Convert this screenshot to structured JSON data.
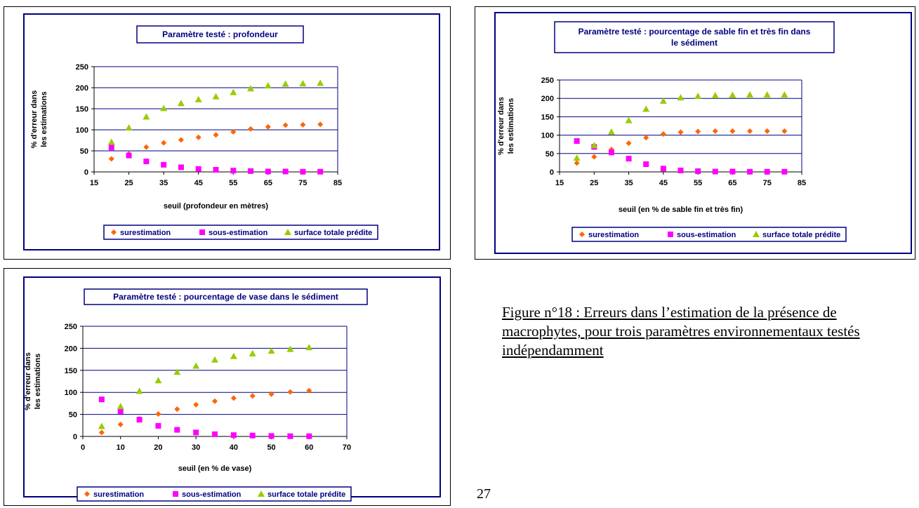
{
  "caption": "Figure n°18 : Erreurs dans l’estimation de la présence de macrophytes, pour trois paramètres environnementaux testés indépendamment",
  "page_number": "27",
  "colors": {
    "surestimation": "#FF6600",
    "sous_estimation": "#FF00FF",
    "surface": "#99CC00",
    "frame": "#000080"
  },
  "chart_data": [
    {
      "type": "scatter",
      "title": "Paramètre testé : profondeur",
      "xlabel": "seuil (profondeur en mètres)",
      "ylabel": "% d'erreur dans les estimations",
      "xlim": [
        15,
        85
      ],
      "ylim": [
        0,
        250
      ],
      "xticks": [
        "15",
        "25",
        "35",
        "45",
        "55",
        "65",
        "75",
        "85"
      ],
      "yticks": [
        "0",
        "50",
        "100",
        "150",
        "200",
        "250"
      ],
      "grid": "horizontal",
      "legend": "bottom",
      "x": [
        20,
        25,
        30,
        35,
        40,
        45,
        50,
        55,
        60,
        65,
        70,
        75,
        80
      ],
      "series": [
        {
          "name": "surestimation",
          "marker": "diamond",
          "values": [
            31,
            43,
            59,
            69,
            76,
            82,
            88,
            95,
            102,
            107,
            111,
            112,
            113
          ]
        },
        {
          "name": "sous-estimation",
          "marker": "square",
          "values": [
            58,
            39,
            25,
            17,
            11,
            7,
            5,
            3,
            2,
            1,
            1,
            0.5,
            0.5
          ]
        },
        {
          "name": "surface totale prédite",
          "marker": "triangle",
          "values": [
            71,
            105,
            131,
            151,
            163,
            172,
            179,
            189,
            198,
            205,
            209,
            210,
            211
          ]
        }
      ]
    },
    {
      "type": "scatter",
      "title": "Paramètre testé : pourcentage de sable fin et très fin dans le sédiment",
      "xlabel": "seuil (en % de sable fin et très fin)",
      "ylabel": "% d'erreur dans les estimations",
      "xlim": [
        15,
        85
      ],
      "ylim": [
        0,
        250
      ],
      "xticks": [
        "15",
        "25",
        "35",
        "45",
        "55",
        "65",
        "75",
        "85"
      ],
      "yticks": [
        "0",
        "50",
        "100",
        "150",
        "200",
        "250"
      ],
      "grid": "horizontal",
      "legend": "bottom",
      "x": [
        20,
        25,
        30,
        35,
        40,
        45,
        50,
        55,
        60,
        65,
        70,
        75,
        80
      ],
      "series": [
        {
          "name": "surestimation",
          "marker": "diamond",
          "values": [
            24,
            41,
            61,
            78,
            93,
            103,
            108,
            110,
            111,
            111,
            111,
            111,
            111
          ]
        },
        {
          "name": "sous-estimation",
          "marker": "square",
          "values": [
            84,
            68,
            53,
            36,
            21,
            9,
            4,
            2,
            1,
            1,
            0.5,
            0.5,
            0.5
          ]
        },
        {
          "name": "surface totale prédite",
          "marker": "triangle",
          "values": [
            38,
            72,
            109,
            140,
            171,
            193,
            202,
            206,
            208,
            209,
            210,
            210,
            210
          ]
        }
      ]
    },
    {
      "type": "scatter",
      "title": "Paramètre testé : pourcentage de vase dans le sédiment",
      "xlabel": "seuil (en % de vase)",
      "ylabel": "% d'erreur dans les estimations",
      "xlim": [
        0,
        70
      ],
      "ylim": [
        0,
        250
      ],
      "xticks": [
        "0",
        "10",
        "20",
        "30",
        "40",
        "50",
        "60",
        "70"
      ],
      "yticks": [
        "0",
        "50",
        "100",
        "150",
        "200",
        "250"
      ],
      "grid": "horizontal",
      "legend": "bottom",
      "x": [
        5,
        10,
        15,
        20,
        25,
        30,
        35,
        40,
        45,
        50,
        55,
        60
      ],
      "series": [
        {
          "name": "surestimation",
          "marker": "diamond",
          "values": [
            9,
            27,
            40,
            51,
            62,
            72,
            80,
            87,
            92,
            96,
            101,
            104
          ]
        },
        {
          "name": "sous-estimation",
          "marker": "square",
          "values": [
            84,
            57,
            38,
            24,
            15,
            9,
            5,
            3,
            2,
            1,
            0.5,
            0.5
          ]
        },
        {
          "name": "surface totale prédite",
          "marker": "triangle",
          "values": [
            23,
            68,
            103,
            127,
            146,
            160,
            174,
            182,
            188,
            194,
            198,
            202
          ]
        }
      ]
    }
  ]
}
